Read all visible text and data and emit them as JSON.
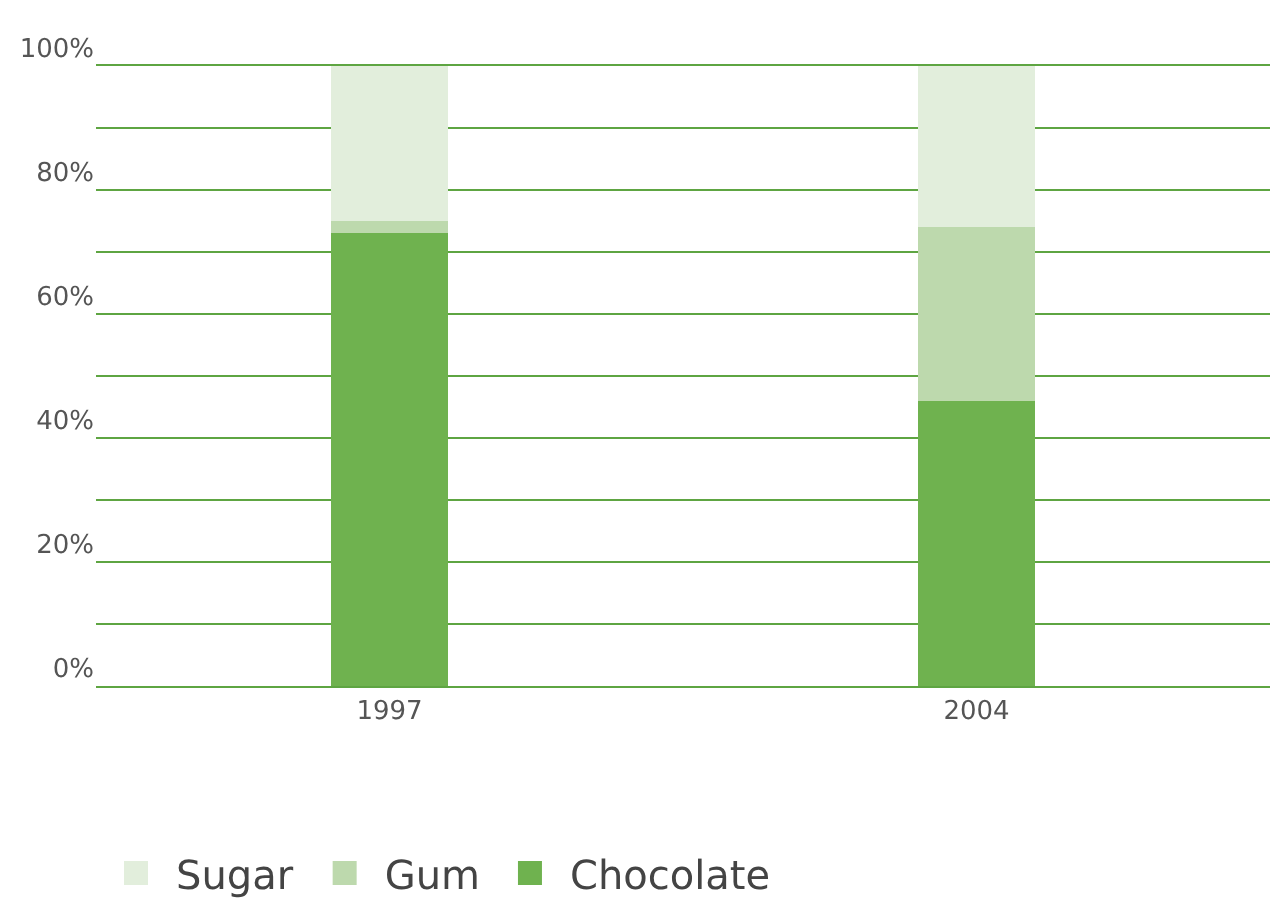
{
  "chart_data": {
    "type": "bar",
    "stacked": true,
    "categories": [
      "1997",
      "2004"
    ],
    "series": [
      {
        "name": "Chocolate",
        "color": "#6fb24f",
        "values": [
          73,
          46
        ]
      },
      {
        "name": "Gum",
        "color": "#bdd9ad",
        "values": [
          2,
          28
        ]
      },
      {
        "name": "Sugar",
        "color": "#e2eedc",
        "values": [
          25,
          26
        ]
      }
    ],
    "ylim": [
      0,
      100
    ],
    "yticks": [
      {
        "value": 0,
        "label": "0%"
      },
      {
        "value": 10,
        "label": null
      },
      {
        "value": 20,
        "label": "20%"
      },
      {
        "value": 30,
        "label": null
      },
      {
        "value": 40,
        "label": "40%"
      },
      {
        "value": 50,
        "label": null
      },
      {
        "value": 60,
        "label": "60%"
      },
      {
        "value": 70,
        "label": null
      },
      {
        "value": 80,
        "label": "80%"
      },
      {
        "value": 90,
        "label": null
      },
      {
        "value": 100,
        "label": "100%"
      }
    ],
    "grid": "y",
    "legend": "bottom"
  }
}
